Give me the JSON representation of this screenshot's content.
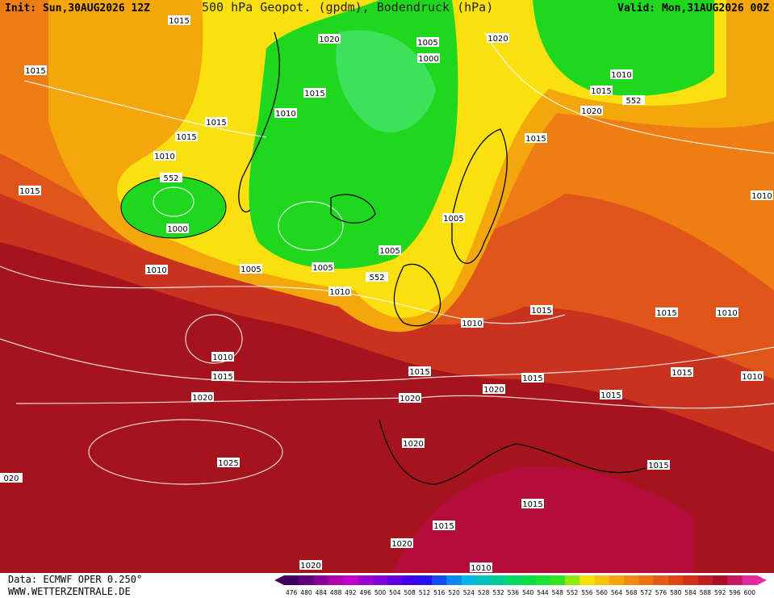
{
  "header": {
    "init": "Init: Sun,30AUG2026 12Z",
    "title": "500 hPa Geopot. (gpdm), Bodendruck (hPa)",
    "valid": "Valid: Mon,31AUG2026 00Z"
  },
  "isobar_labels": [
    "1015",
    "1020",
    "1005",
    "1000",
    "1020",
    "1015",
    "1010",
    "1015",
    "1015",
    "552",
    "1010",
    "1020",
    "1015",
    "1015",
    "1015",
    "1010",
    "552",
    "1015",
    "1010",
    "1005",
    "1000",
    "1005",
    "1010",
    "1005",
    "1005",
    "552",
    "1010",
    "1015",
    "1015",
    "1010",
    "1010",
    "1010",
    "1015",
    "1015",
    "1015",
    "1010",
    "1015",
    "1020",
    "1015",
    "1020",
    "1020",
    "1020",
    "1015",
    "1025",
    "020",
    "1015",
    "1015",
    "1020",
    "1020",
    "1010"
  ],
  "colorbar": {
    "labels": [
      476,
      480,
      484,
      488,
      492,
      496,
      500,
      504,
      508,
      512,
      516,
      520,
      524,
      528,
      532,
      536,
      540,
      544,
      548,
      552,
      556,
      560,
      564,
      568,
      572,
      576,
      580,
      584,
      588,
      592,
      596,
      600
    ]
  },
  "footer": {
    "source": "Data: ECMWF OPER 0.250°",
    "website": "WWW.WETTERZENTRALE.DE"
  }
}
